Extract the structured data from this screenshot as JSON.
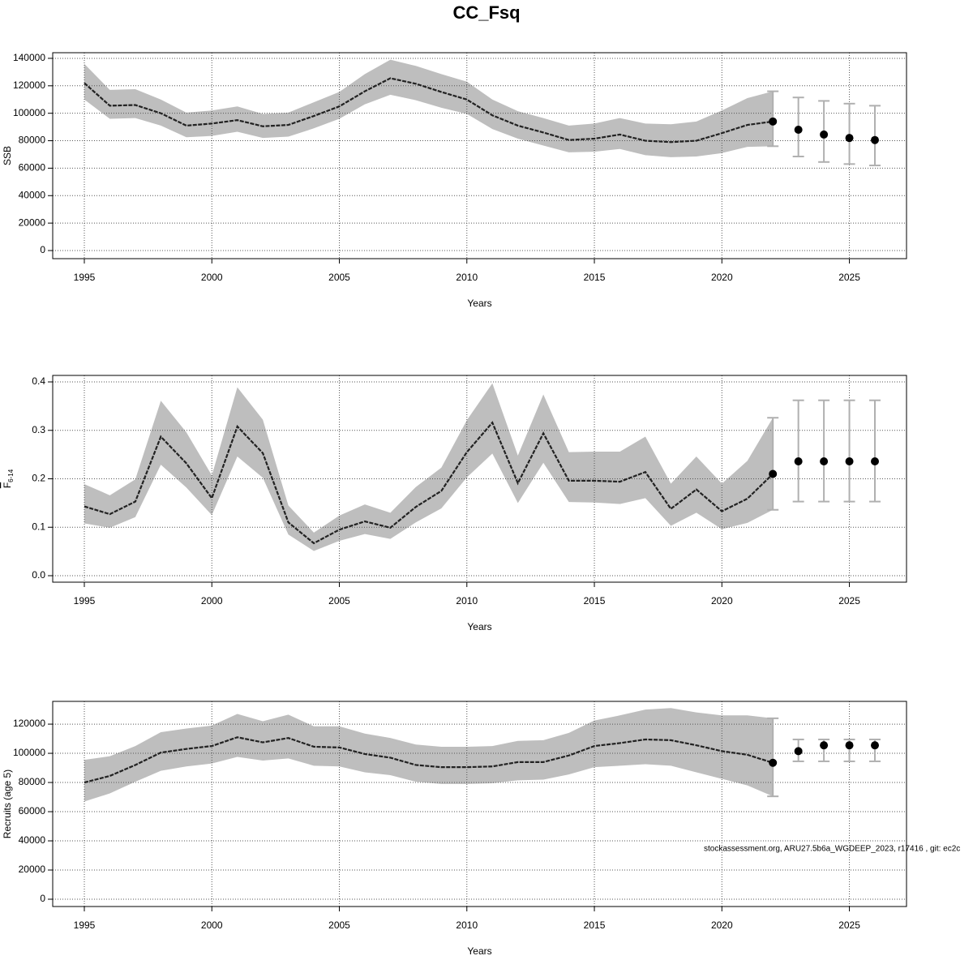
{
  "title": "CC_Fsq",
  "annotation": "stockassessment.org, ARU27.5b6a_WGDEEP_2023, r17416 , git: ec2c",
  "chart_data": [
    {
      "type": "line",
      "y_label": "SSB",
      "x_label": "Years",
      "x": [
        1995,
        1996,
        1997,
        1998,
        1999,
        2000,
        2001,
        2002,
        2003,
        2004,
        2005,
        2006,
        2007,
        2008,
        2009,
        2010,
        2011,
        2012,
        2013,
        2014,
        2015,
        2016,
        2017,
        2018,
        2019,
        2020,
        2021,
        2022
      ],
      "values": [
        122000,
        105500,
        106000,
        100000,
        91000,
        92500,
        95000,
        90500,
        91500,
        98000,
        105000,
        116000,
        125500,
        121500,
        115500,
        110000,
        98500,
        91000,
        86000,
        80500,
        81500,
        84500,
        80000,
        79000,
        80000,
        85500,
        91500,
        94000
      ],
      "lower": [
        110000,
        96000,
        96500,
        91000,
        82500,
        83500,
        86500,
        82000,
        83000,
        89000,
        96000,
        106500,
        113500,
        109500,
        104000,
        99500,
        88500,
        81500,
        76500,
        71500,
        72000,
        74000,
        69500,
        68000,
        68500,
        71000,
        75500,
        76000
      ],
      "upper": [
        136000,
        117000,
        117500,
        110000,
        100500,
        102000,
        105000,
        99500,
        100500,
        108000,
        115500,
        128500,
        139000,
        134500,
        128500,
        123000,
        110000,
        101500,
        96500,
        91000,
        92500,
        96500,
        92500,
        92000,
        94000,
        102000,
        111000,
        116000
      ],
      "forecast_x": [
        2023,
        2024,
        2025,
        2026
      ],
      "forecast_values": [
        88000,
        84500,
        82000,
        80500
      ],
      "forecast_lower": [
        68500,
        64500,
        63000,
        62000
      ],
      "forecast_upper": [
        111500,
        109000,
        107000,
        105500
      ],
      "xlim": [
        1993.76,
        2027.24
      ],
      "ylim": [
        -5900,
        144100
      ],
      "xticks": [
        1995,
        2000,
        2005,
        2010,
        2015,
        2020,
        2025
      ],
      "yticks": [
        0,
        20000,
        40000,
        60000,
        80000,
        100000,
        120000,
        140000
      ],
      "grid": true,
      "band_color": "#bebebe",
      "line_color": "#222222",
      "errorbar_color": "#b0b0b0"
    },
    {
      "type": "line",
      "y_label": "F",
      "y_label_subscript": "6-14",
      "x_label": "Years",
      "x": [
        1995,
        1996,
        1997,
        1998,
        1999,
        2000,
        2001,
        2002,
        2003,
        2004,
        2005,
        2006,
        2007,
        2008,
        2009,
        2010,
        2011,
        2012,
        2013,
        2014,
        2015,
        2016,
        2017,
        2018,
        2019,
        2020,
        2021,
        2022
      ],
      "values": [
        0.143,
        0.127,
        0.153,
        0.287,
        0.232,
        0.16,
        0.308,
        0.253,
        0.11,
        0.067,
        0.095,
        0.112,
        0.099,
        0.142,
        0.175,
        0.255,
        0.316,
        0.191,
        0.294,
        0.196,
        0.196,
        0.194,
        0.214,
        0.138,
        0.178,
        0.133,
        0.159,
        0.21
      ],
      "lower": [
        0.108,
        0.099,
        0.121,
        0.229,
        0.182,
        0.125,
        0.246,
        0.202,
        0.085,
        0.051,
        0.072,
        0.086,
        0.076,
        0.11,
        0.139,
        0.203,
        0.252,
        0.15,
        0.233,
        0.152,
        0.151,
        0.148,
        0.16,
        0.103,
        0.13,
        0.096,
        0.109,
        0.136
      ],
      "upper": [
        0.189,
        0.166,
        0.199,
        0.361,
        0.296,
        0.207,
        0.389,
        0.322,
        0.145,
        0.089,
        0.124,
        0.147,
        0.13,
        0.183,
        0.223,
        0.321,
        0.397,
        0.248,
        0.374,
        0.255,
        0.256,
        0.256,
        0.287,
        0.19,
        0.246,
        0.19,
        0.237,
        0.326
      ],
      "forecast_x": [
        2023,
        2024,
        2025,
        2026
      ],
      "forecast_values": [
        0.236,
        0.236,
        0.236,
        0.236
      ],
      "forecast_lower": [
        0.153,
        0.153,
        0.153,
        0.153
      ],
      "forecast_upper": [
        0.362,
        0.362,
        0.362,
        0.362
      ],
      "xlim": [
        1993.76,
        2027.24
      ],
      "ylim": [
        -0.0134,
        0.4134
      ],
      "xticks": [
        1995,
        2000,
        2005,
        2010,
        2015,
        2020,
        2025
      ],
      "yticks": [
        {
          "value": 0,
          "label": "0.0"
        },
        0.1,
        0.2,
        0.3,
        0.4
      ],
      "grid": true,
      "band_color": "#bebebe",
      "line_color": "#222222",
      "errorbar_color": "#b0b0b0"
    },
    {
      "type": "line",
      "y_label": "Recruits (age 5)",
      "x_label": "Years",
      "x": [
        1995,
        1996,
        1997,
        1998,
        1999,
        2000,
        2001,
        2002,
        2003,
        2004,
        2005,
        2006,
        2007,
        2008,
        2009,
        2010,
        2011,
        2012,
        2013,
        2014,
        2015,
        2016,
        2017,
        2018,
        2019,
        2020,
        2021,
        2022
      ],
      "values": [
        80000,
        84500,
        92000,
        100500,
        103000,
        105000,
        111000,
        107500,
        110500,
        104500,
        104000,
        99500,
        97000,
        92000,
        90500,
        90500,
        91000,
        94000,
        94000,
        98500,
        105000,
        107000,
        109500,
        109000,
        105500,
        101500,
        99000,
        93500
      ],
      "lower": [
        67000,
        72500,
        80500,
        88000,
        91000,
        93000,
        97500,
        95000,
        96500,
        91500,
        91000,
        87000,
        85000,
        80500,
        79000,
        79000,
        79500,
        81500,
        82000,
        85500,
        90500,
        91500,
        92500,
        91500,
        87000,
        82500,
        78000,
        70500
      ],
      "upper": [
        95500,
        98000,
        105000,
        114500,
        117000,
        119000,
        127000,
        122000,
        126500,
        118500,
        118500,
        113500,
        110500,
        106000,
        104500,
        104500,
        105000,
        108500,
        109000,
        114000,
        122500,
        126000,
        130000,
        131000,
        128000,
        126000,
        126000,
        124000
      ],
      "forecast_x": [
        2023,
        2024,
        2025,
        2026
      ],
      "forecast_values": [
        101500,
        105500,
        105500,
        105500
      ],
      "forecast_lower": [
        94500,
        94500,
        94500,
        94500
      ],
      "forecast_upper": [
        109500,
        109500,
        109500,
        109500
      ],
      "xlim": [
        1993.76,
        2027.24
      ],
      "ylim": [
        -5000,
        135600
      ],
      "xticks": [
        1995,
        2000,
        2005,
        2010,
        2015,
        2020,
        2025
      ],
      "yticks": [
        0,
        20000,
        40000,
        60000,
        80000,
        100000,
        120000
      ],
      "grid": true,
      "band_color": "#bebebe",
      "line_color": "#222222",
      "errorbar_color": "#b0b0b0"
    }
  ]
}
